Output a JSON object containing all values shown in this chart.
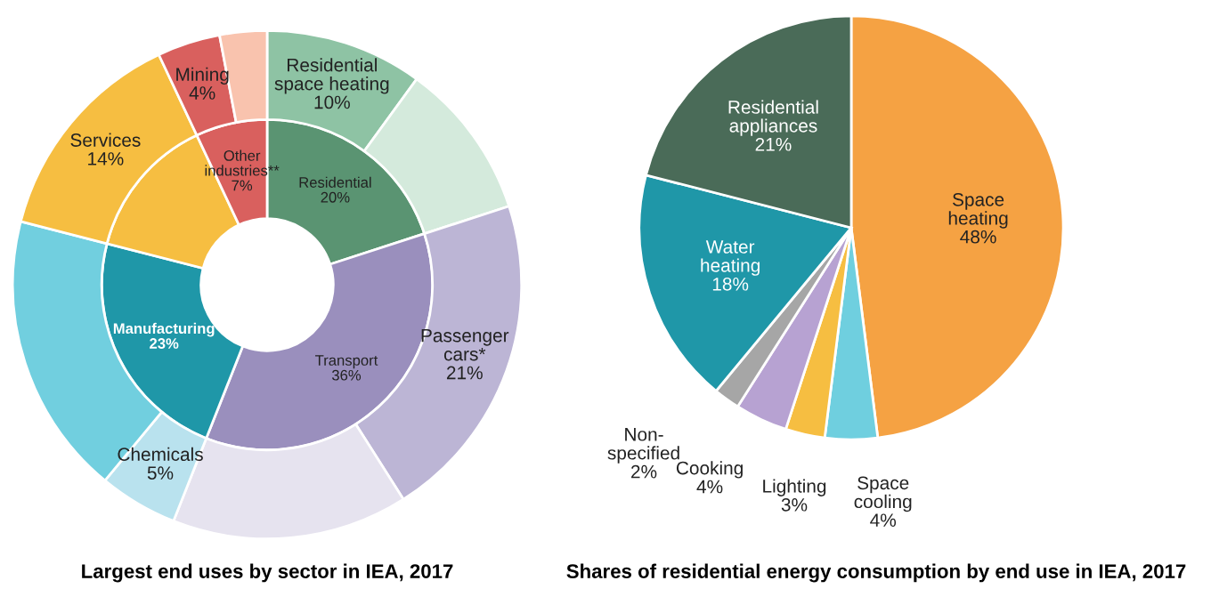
{
  "chart_data": [
    {
      "type": "donut",
      "title": "Largest end uses by sector in IEA, 2017",
      "series": [
        {
          "values": [
            20,
            36,
            23,
            14,
            7
          ],
          "value_labels": [
            "Residential\n20%",
            "Transport\n36%",
            "Manufacturing\n23%",
            null,
            "Other\nindustries**\n7%"
          ],
          "colors": [
            "#5a9472",
            "#9a8fbd",
            "#1f97a8",
            "#f6be41",
            "#d9605e"
          ]
        },
        {
          "values": [
            10,
            10,
            21,
            15,
            5,
            18,
            14,
            4,
            3
          ],
          "value_labels": [
            "Residential\nspace heating\n10%",
            null,
            "Passenger\ncars*\n21%",
            null,
            "Chemicals\n5%",
            null,
            "Services\n14%",
            "Mining\n4%",
            null
          ],
          "colors": [
            "#8ec3a4",
            "#d4eadc",
            "#bcb5d5",
            "#e6e3ef",
            "#b9e2ee",
            "#71cfdf",
            "#f6be41",
            "#d9605e",
            "#f9c3ae"
          ]
        }
      ]
    },
    {
      "type": "pie",
      "title": "Shares of residential energy consumption by end use in IEA, 2017",
      "categories": [
        "Space heating",
        "Space cooling",
        "Lighting",
        "Cooking",
        "Non-specified",
        "Water heating",
        "Residential appliances"
      ],
      "values": [
        48,
        4,
        3,
        4,
        2,
        18,
        21
      ],
      "value_labels": [
        "48%",
        "4%",
        "3%",
        "4%",
        "2%",
        "18%",
        "21%"
      ],
      "colors": [
        "#f5a243",
        "#6fcfdf",
        "#f6be41",
        "#b7a2d2",
        "#a6a6a6",
        "#1f97a8",
        "#4a6b58"
      ]
    }
  ]
}
